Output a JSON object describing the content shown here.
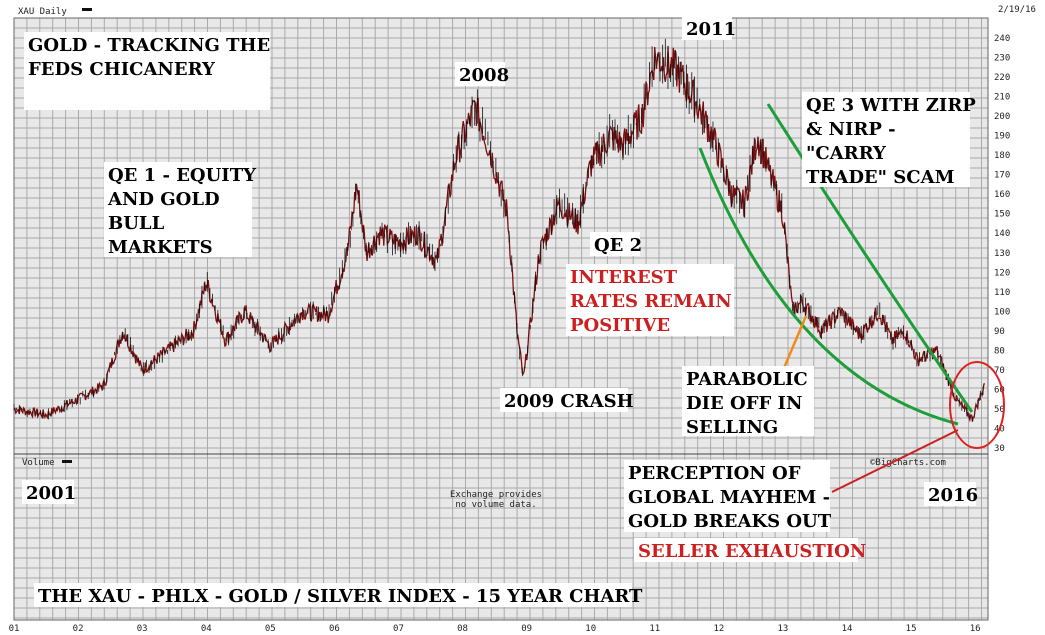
{
  "chart_data": {
    "type": "line",
    "ticker_label": "XAU Daily",
    "date_label": "2/19/16",
    "volume_label": "Volume",
    "volume_note": [
      "Exchange provides",
      "no volume data."
    ],
    "watermark": "©BigCharts.com",
    "x_ticks": [
      "01",
      "02",
      "03",
      "04",
      "05",
      "06",
      "07",
      "08",
      "09",
      "10",
      "11",
      "12",
      "13",
      "14",
      "15",
      "16"
    ],
    "y_ticks": [
      30,
      40,
      50,
      60,
      70,
      80,
      90,
      100,
      110,
      120,
      130,
      140,
      150,
      160,
      170,
      180,
      190,
      200,
      210,
      220,
      230,
      240
    ],
    "xlim": [
      2001.0,
      2016.2
    ],
    "ylim": [
      30,
      240
    ],
    "series": [
      {
        "x": [
          2001.0,
          2001.5,
          2002.0,
          2002.4,
          2002.7,
          2003.0,
          2003.4,
          2003.8,
          2004.0,
          2004.3,
          2004.6,
          2005.0,
          2005.5,
          2005.9,
          2006.2,
          2006.35,
          2006.5,
          2006.7,
          2007.0,
          2007.3,
          2007.6,
          2007.9,
          2008.2,
          2008.45,
          2008.7,
          2008.85,
          2008.95,
          2009.2,
          2009.5,
          2009.8,
          2010.0,
          2010.3,
          2010.5,
          2010.8,
          2011.0,
          2011.3,
          2011.6,
          2011.9,
          2012.2,
          2012.4,
          2012.6,
          2012.8,
          2013.0,
          2013.15,
          2013.3,
          2013.6,
          2013.9,
          2014.2,
          2014.5,
          2014.7,
          2014.9,
          2015.1,
          2015.4,
          2015.7,
          2015.95,
          2016.1,
          2016.15
        ],
        "y": [
          50,
          47,
          55,
          62,
          90,
          70,
          80,
          90,
          115,
          85,
          100,
          82,
          100,
          98,
          130,
          165,
          130,
          140,
          135,
          140,
          125,
          180,
          205,
          180,
          150,
          90,
          65,
          130,
          155,
          145,
          175,
          190,
          185,
          200,
          230,
          225,
          210,
          190,
          160,
          155,
          190,
          170,
          150,
          100,
          105,
          90,
          100,
          88,
          100,
          85,
          90,
          75,
          80,
          55,
          45,
          58,
          64
        ]
      }
    ],
    "annotations": [
      {
        "id": "title",
        "lines": [
          "GOLD - TRACKING THE",
          "FEDS CHICANERY"
        ],
        "color": "#000000"
      },
      {
        "id": "yr2008",
        "lines": [
          "2008"
        ],
        "color": "#000000"
      },
      {
        "id": "yr2011",
        "lines": [
          "2011"
        ],
        "color": "#000000"
      },
      {
        "id": "qe1",
        "lines": [
          "QE 1 - EQUITY",
          "AND GOLD",
          "BULL",
          "MARKETS"
        ],
        "color": "#000000"
      },
      {
        "id": "qe2",
        "lines": [
          "QE 2"
        ],
        "color": "#000000"
      },
      {
        "id": "rates",
        "lines": [
          "INTEREST",
          "RATES REMAIN",
          "POSITIVE"
        ],
        "color": "#cc1f1f"
      },
      {
        "id": "qe3",
        "lines": [
          "QE 3 WITH ZIRP",
          "&  NIRP -",
          "\"CARRY",
          "TRADE\" SCAM"
        ],
        "color": "#000000"
      },
      {
        "id": "crash",
        "lines": [
          "2009 CRASH"
        ],
        "color": "#000000"
      },
      {
        "id": "parabolic",
        "lines": [
          "PARABOLIC",
          "DIE OFF IN",
          "SELLING"
        ],
        "color": "#000000"
      },
      {
        "id": "yr2001",
        "lines": [
          "2001"
        ],
        "color": "#000000"
      },
      {
        "id": "yr2016",
        "lines": [
          "2016"
        ],
        "color": "#000000"
      },
      {
        "id": "mayhem",
        "lines": [
          "PERCEPTION OF",
          "GLOBAL MAYHEM -",
          "GOLD BREAKS OUT"
        ],
        "color": "#000000"
      },
      {
        "id": "seller",
        "lines": [
          "SELLER EXHAUSTION"
        ],
        "color": "#cc1f1f"
      },
      {
        "id": "footer",
        "lines": [
          "THE XAU - PHLX - GOLD / SILVER INDEX - 15 YEAR CHART"
        ],
        "color": "#000000"
      }
    ],
    "colors": {
      "price": "#7a0f0f",
      "grid": "#a9a9a9",
      "bg": "#e8e8e8",
      "trend": "#1e9e3a",
      "circle": "#dd2222",
      "arrow_orange": "#f08a1c",
      "arrow_red": "#cc1f1f"
    }
  }
}
